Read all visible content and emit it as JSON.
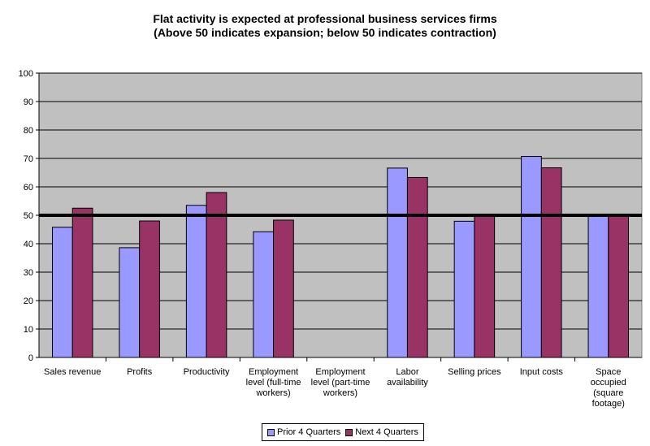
{
  "chart_data": {
    "type": "bar",
    "title": "Flat activity is expected at professional business services firms",
    "subtitle": "(Above 50 indicates expansion; below 50 indicates contraction)",
    "categories": [
      [
        "Sales revenue"
      ],
      [
        "Profits"
      ],
      [
        "Productivity"
      ],
      [
        "Employment",
        "level (full-time",
        "workers)"
      ],
      [
        "Employment",
        "level (part-time",
        "workers)"
      ],
      [
        "Labor",
        "availability"
      ],
      [
        "Selling prices"
      ],
      [
        "Input costs"
      ],
      [
        "Space",
        "occupied",
        "(square",
        "footage)"
      ]
    ],
    "series": [
      {
        "name": "Prior 4 Quarters",
        "color": "#9999ff",
        "values": [
          45.8,
          38.6,
          53.5,
          44.2,
          null,
          66.6,
          47.9,
          70.7,
          50
        ]
      },
      {
        "name": "Next 4 Quarters",
        "color": "#993366",
        "values": [
          52.5,
          48,
          58,
          48.3,
          null,
          63.3,
          50,
          66.7,
          50
        ]
      }
    ],
    "ylim": [
      0,
      100
    ],
    "yticks": [
      0,
      10,
      20,
      30,
      40,
      50,
      60,
      70,
      80,
      90,
      100
    ],
    "reference_line": 50,
    "grid": true,
    "plot_background": "#c0c0c0",
    "legend_position": "bottom"
  }
}
